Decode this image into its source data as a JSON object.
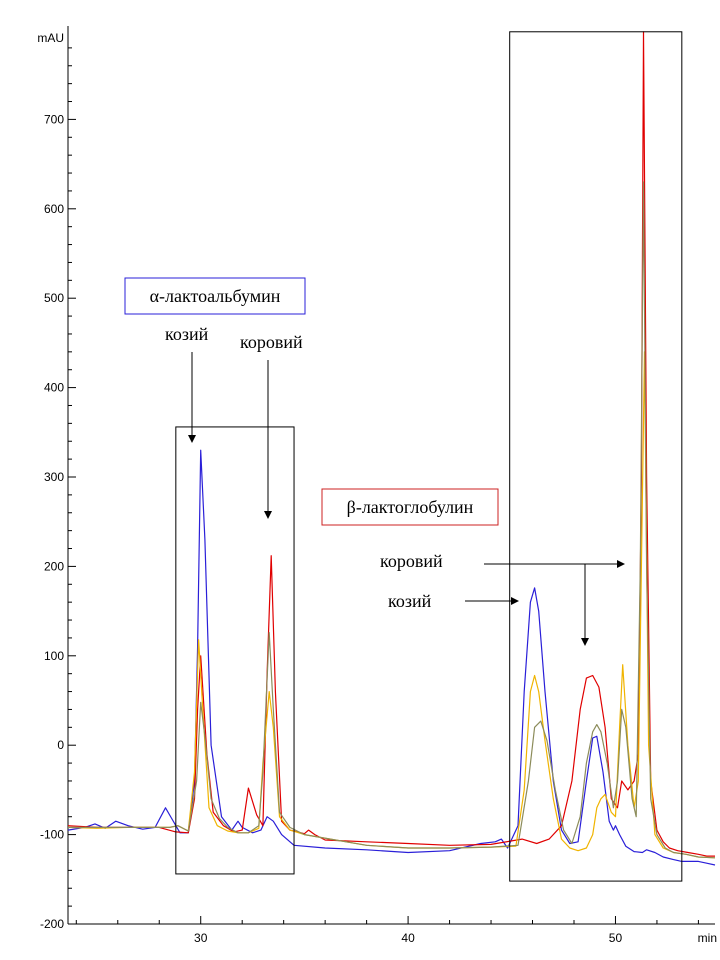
{
  "chart_data": {
    "type": "line",
    "title": "",
    "xlabel": "min",
    "ylabel": "mAU",
    "xlim": [
      23.6,
      54.8
    ],
    "ylim": [
      -200,
      800
    ],
    "xticks": [
      30,
      40,
      50
    ],
    "xtick_labels": [
      "30",
      "40",
      "50"
    ],
    "yticks": [
      -200,
      -100,
      0,
      100,
      200,
      300,
      400,
      500,
      600,
      700
    ],
    "ytick_labels": [
      "-200",
      "-100",
      "0",
      "100",
      "200",
      "300",
      "400",
      "500",
      "600",
      "700"
    ],
    "grid": false,
    "colors": {
      "blue": "#2a1fd8",
      "red": "#e00000",
      "orange": "#f0b400",
      "olive": "#8c8c5a",
      "axis": "#000000"
    },
    "series": [
      {
        "color": "#2a1fd8",
        "x": [
          23.6,
          24.4,
          24.9,
          25.4,
          25.9,
          26.5,
          27.2,
          27.8,
          28.3,
          28.6,
          29.0,
          29.4,
          29.7,
          29.85,
          30.0,
          30.2,
          30.5,
          31.0,
          31.5,
          31.8,
          32.0,
          32.5,
          32.9,
          33.2,
          33.5,
          33.9,
          34.5,
          36,
          38,
          40,
          42,
          43.5,
          44.2,
          44.5,
          44.8,
          45.3,
          45.6,
          45.9,
          46.1,
          46.3,
          46.6,
          47.0,
          47.4,
          47.8,
          48.2,
          48.6,
          48.9,
          49.1,
          49.4,
          49.7,
          49.9,
          50.0,
          50.2,
          50.5,
          50.9,
          51.3,
          51.5,
          51.9,
          52.3,
          52.8,
          53.2,
          53.6,
          54.0,
          54.4,
          54.8
        ],
        "y": [
          -95,
          -92,
          -88,
          -93,
          -85,
          -90,
          -94,
          -92,
          -70,
          -82,
          -98,
          -98,
          -40,
          110,
          330,
          230,
          0,
          -80,
          -95,
          -85,
          -92,
          -98,
          -95,
          -80,
          -85,
          -100,
          -112,
          -115,
          -117,
          -120,
          -118,
          -110,
          -108,
          -105,
          -115,
          -90,
          60,
          160,
          176,
          150,
          60,
          -40,
          -95,
          -110,
          -108,
          -40,
          8,
          10,
          -30,
          -85,
          -95,
          -90,
          -100,
          -113,
          -119,
          -120,
          -117,
          -120,
          -125,
          -128,
          -130,
          -130,
          -130,
          -132,
          -134
        ]
      },
      {
        "color": "#e00000",
        "x": [
          23.6,
          25,
          26.5,
          28.0,
          28.8,
          29.4,
          29.7,
          29.85,
          30.0,
          30.3,
          30.6,
          31.1,
          31.6,
          32.0,
          32.3,
          32.7,
          33.0,
          33.2,
          33.4,
          33.6,
          33.9,
          34.3,
          35.0,
          35.2,
          35.5,
          36,
          38,
          40,
          42,
          44,
          45.5,
          46.2,
          46.8,
          47.4,
          47.9,
          48.3,
          48.6,
          48.9,
          49.2,
          49.5,
          49.8,
          50.1,
          50.3,
          50.6,
          50.9,
          51.1,
          51.25,
          51.35,
          51.5,
          51.7,
          52.0,
          52.3,
          52.6,
          53.0,
          53.5,
          54.0,
          54.4,
          54.8
        ],
        "y": [
          -90,
          -92,
          -92,
          -92,
          -97,
          -98,
          -60,
          40,
          100,
          -10,
          -75,
          -90,
          -97,
          -95,
          -48,
          -78,
          -90,
          80,
          212,
          60,
          -85,
          -95,
          -99,
          -95,
          -100,
          -106,
          -108,
          -110,
          -112,
          -111,
          -105,
          -110,
          -105,
          -90,
          -40,
          40,
          75,
          78,
          65,
          20,
          -60,
          -70,
          -40,
          -50,
          -40,
          -10,
          300,
          798,
          300,
          -40,
          -95,
          -108,
          -115,
          -118,
          -120,
          -122,
          -124,
          -124
        ]
      },
      {
        "color": "#f0b400",
        "x": [
          23.6,
          25,
          26.5,
          28.0,
          28.5,
          28.9,
          29.4,
          29.7,
          29.9,
          30.1,
          30.4,
          30.8,
          31.3,
          31.8,
          32.3,
          32.8,
          33.0,
          33.3,
          33.5,
          33.8,
          34.3,
          35,
          38,
          40,
          42,
          44,
          45.2,
          45.6,
          45.9,
          46.1,
          46.3,
          46.6,
          47.0,
          47.4,
          47.8,
          48.2,
          48.6,
          48.9,
          49.1,
          49.3,
          49.5,
          49.8,
          50.0,
          50.2,
          50.35,
          50.6,
          50.9,
          51.1,
          51.25,
          51.4,
          51.6,
          51.9,
          52.3,
          52.8,
          53.4,
          54.0,
          54.8
        ],
        "y": [
          -92,
          -93,
          -92,
          -92,
          -92,
          -90,
          -96,
          -30,
          118,
          40,
          -70,
          -90,
          -96,
          -98,
          -98,
          -93,
          -20,
          60,
          20,
          -80,
          -95,
          -100,
          -112,
          -115,
          -115,
          -114,
          -113,
          -50,
          60,
          78,
          60,
          5,
          -60,
          -105,
          -115,
          -118,
          -115,
          -100,
          -70,
          -60,
          -55,
          -75,
          -80,
          20,
          90,
          0,
          -70,
          -40,
          200,
          440,
          0,
          -100,
          -115,
          -120,
          -122,
          -125,
          -126
        ]
      },
      {
        "color": "#8c8c5a",
        "x": [
          23.6,
          25,
          26.5,
          28.0,
          28.5,
          28.9,
          29.4,
          29.8,
          30.0,
          30.2,
          30.5,
          30.9,
          31.3,
          31.8,
          32.3,
          32.8,
          33.0,
          33.3,
          33.5,
          33.8,
          34.3,
          35,
          38,
          40,
          42,
          44,
          45.3,
          45.8,
          46.1,
          46.4,
          46.7,
          47.1,
          47.5,
          47.9,
          48.3,
          48.6,
          48.9,
          49.1,
          49.3,
          49.6,
          49.9,
          50.1,
          50.3,
          50.5,
          50.8,
          51.0,
          51.2,
          51.35,
          51.5,
          51.7,
          52.0,
          52.4,
          52.8,
          53.4,
          54.0,
          54.8
        ],
        "y": [
          -92,
          -92,
          -92,
          -92,
          -92,
          -90,
          -96,
          -40,
          48,
          10,
          -60,
          -82,
          -92,
          -98,
          -98,
          -90,
          -30,
          126,
          40,
          -75,
          -92,
          -100,
          -112,
          -115,
          -115,
          -114,
          -112,
          -40,
          20,
          27,
          5,
          -50,
          -95,
          -110,
          -80,
          -20,
          15,
          23,
          15,
          -20,
          -70,
          -40,
          40,
          20,
          -60,
          -80,
          200,
          630,
          200,
          -60,
          -100,
          -115,
          -120,
          -122,
          -125,
          -126
        ]
      }
    ],
    "annotations": {
      "alpha_box_label": "α-лактоальбумин",
      "beta_box_label": "β-лактоглобулин",
      "alpha_goat": "козий",
      "alpha_cow": "коровий",
      "beta_cow": "коровий",
      "beta_goat": "козий"
    }
  }
}
